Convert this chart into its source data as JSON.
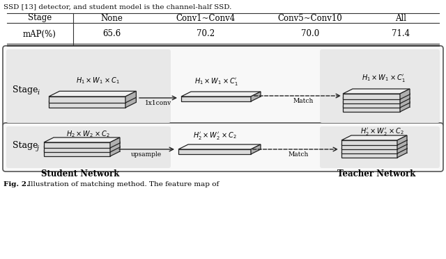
{
  "top_text": "SSD [13] detector, and student model is the channel-half SSD.",
  "table": {
    "headers": [
      "Stage",
      "None",
      "Conv1~Conv4",
      "Conv5~Conv10",
      "All"
    ],
    "row_label": "mAP(%)",
    "values": [
      "65.6",
      "70.2",
      "70.0",
      "71.4"
    ]
  },
  "stage_i_label": "Stage",
  "stage_i_sub": "i",
  "stage_j_label": "Stage",
  "stage_j_sub": "j",
  "student_label": "Student Network",
  "teacher_label": "Teacher Network",
  "box_i_label1": "$H_1 \\times W_1 \\times C_1$",
  "box_i_label2": "$H_1 \\times W_1 \\times C_1'$",
  "box_i_label3": "$H_1 \\times W_1 \\times C_1'$",
  "box_j_label1": "$H_2 \\times W_2 \\times C_2$",
  "box_j_label2": "$H_2' \\times W_2' \\times C_2$",
  "box_j_label3": "$H_2' \\times W_2' \\times C_2$",
  "arrow1_label": "1x1conv",
  "arrow2_label": "upsample",
  "match_label": "Match",
  "bg_color": "#ffffff",
  "panel_bg": "#f8f8f8",
  "shade_bg": "#e8e8e8",
  "box_face_top": "#dcdcdc",
  "box_face_right": "#b0b0b0",
  "box_face_front": "#f0f0f0",
  "box_edge": "#222222",
  "table_line": "#333333"
}
